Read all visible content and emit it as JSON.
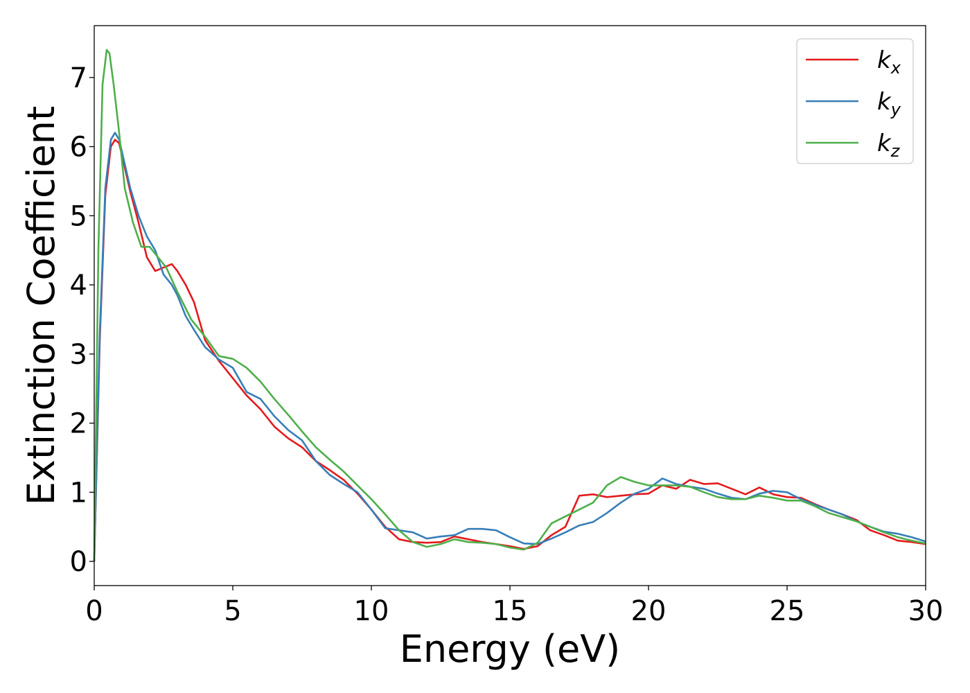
{
  "chart_data": {
    "type": "line",
    "title": "",
    "xlabel": "Energy (eV)",
    "ylabel": "Extinction Coefficient",
    "xlim": [
      0,
      30
    ],
    "ylim": [
      -0.35,
      7.75
    ],
    "xticks": [
      0,
      5,
      10,
      15,
      20,
      25,
      30
    ],
    "yticks": [
      0,
      1,
      2,
      3,
      4,
      5,
      6,
      7
    ],
    "grid": false,
    "legend_position": "top-right",
    "series": [
      {
        "name": "k_x",
        "label_main": "k",
        "label_sub": "x",
        "color": "#e41a1c",
        "points": [
          [
            0,
            0
          ],
          [
            0.2,
            3.2
          ],
          [
            0.4,
            5.3
          ],
          [
            0.6,
            6.0
          ],
          [
            0.75,
            6.1
          ],
          [
            0.9,
            6.05
          ],
          [
            1.1,
            5.7
          ],
          [
            1.3,
            5.35
          ],
          [
            1.6,
            4.9
          ],
          [
            1.9,
            4.4
          ],
          [
            2.2,
            4.2
          ],
          [
            2.5,
            4.25
          ],
          [
            2.8,
            4.3
          ],
          [
            3.0,
            4.2
          ],
          [
            3.3,
            4.0
          ],
          [
            3.6,
            3.75
          ],
          [
            4.0,
            3.2
          ],
          [
            4.5,
            2.9
          ],
          [
            5.0,
            2.65
          ],
          [
            5.5,
            2.4
          ],
          [
            6.0,
            2.2
          ],
          [
            6.5,
            1.95
          ],
          [
            7.0,
            1.78
          ],
          [
            7.5,
            1.65
          ],
          [
            8.0,
            1.45
          ],
          [
            8.5,
            1.32
          ],
          [
            9.0,
            1.18
          ],
          [
            9.5,
            0.98
          ],
          [
            10.0,
            0.75
          ],
          [
            10.5,
            0.5
          ],
          [
            11.0,
            0.32
          ],
          [
            11.5,
            0.28
          ],
          [
            12.0,
            0.27
          ],
          [
            12.5,
            0.28
          ],
          [
            13.0,
            0.36
          ],
          [
            13.5,
            0.32
          ],
          [
            14.0,
            0.28
          ],
          [
            14.5,
            0.25
          ],
          [
            15.0,
            0.22
          ],
          [
            15.5,
            0.18
          ],
          [
            16.0,
            0.22
          ],
          [
            16.5,
            0.38
          ],
          [
            17.0,
            0.5
          ],
          [
            17.5,
            0.95
          ],
          [
            18.0,
            0.97
          ],
          [
            18.5,
            0.93
          ],
          [
            19.0,
            0.95
          ],
          [
            19.5,
            0.97
          ],
          [
            20.0,
            0.98
          ],
          [
            20.5,
            1.1
          ],
          [
            21.0,
            1.05
          ],
          [
            21.5,
            1.18
          ],
          [
            22.0,
            1.12
          ],
          [
            22.5,
            1.13
          ],
          [
            23.0,
            1.05
          ],
          [
            23.5,
            0.97
          ],
          [
            24.0,
            1.07
          ],
          [
            24.5,
            0.97
          ],
          [
            25.0,
            0.93
          ],
          [
            25.5,
            0.92
          ],
          [
            26.0,
            0.83
          ],
          [
            26.5,
            0.75
          ],
          [
            27.0,
            0.68
          ],
          [
            27.5,
            0.6
          ],
          [
            28.0,
            0.45
          ],
          [
            28.5,
            0.38
          ],
          [
            29.0,
            0.3
          ],
          [
            29.5,
            0.28
          ],
          [
            30.0,
            0.25
          ]
        ]
      },
      {
        "name": "k_y",
        "label_main": "k",
        "label_sub": "y",
        "color": "#377eb8",
        "points": [
          [
            0,
            0
          ],
          [
            0.2,
            3.3
          ],
          [
            0.4,
            5.4
          ],
          [
            0.6,
            6.1
          ],
          [
            0.75,
            6.2
          ],
          [
            0.9,
            6.1
          ],
          [
            1.1,
            5.75
          ],
          [
            1.3,
            5.4
          ],
          [
            1.6,
            5.0
          ],
          [
            1.9,
            4.7
          ],
          [
            2.2,
            4.5
          ],
          [
            2.5,
            4.15
          ],
          [
            2.8,
            4.0
          ],
          [
            3.0,
            3.85
          ],
          [
            3.3,
            3.55
          ],
          [
            3.6,
            3.35
          ],
          [
            4.0,
            3.1
          ],
          [
            4.5,
            2.92
          ],
          [
            5.0,
            2.8
          ],
          [
            5.5,
            2.45
          ],
          [
            6.0,
            2.35
          ],
          [
            6.5,
            2.1
          ],
          [
            7.0,
            1.9
          ],
          [
            7.5,
            1.75
          ],
          [
            8.0,
            1.45
          ],
          [
            8.5,
            1.25
          ],
          [
            9.0,
            1.12
          ],
          [
            9.5,
            1.0
          ],
          [
            10.0,
            0.75
          ],
          [
            10.5,
            0.48
          ],
          [
            11.0,
            0.45
          ],
          [
            11.5,
            0.42
          ],
          [
            12.0,
            0.33
          ],
          [
            12.5,
            0.36
          ],
          [
            13.0,
            0.38
          ],
          [
            13.5,
            0.47
          ],
          [
            14.0,
            0.47
          ],
          [
            14.5,
            0.45
          ],
          [
            15.0,
            0.35
          ],
          [
            15.5,
            0.26
          ],
          [
            16.0,
            0.25
          ],
          [
            16.5,
            0.33
          ],
          [
            17.0,
            0.42
          ],
          [
            17.5,
            0.52
          ],
          [
            18.0,
            0.57
          ],
          [
            18.5,
            0.7
          ],
          [
            19.0,
            0.85
          ],
          [
            19.5,
            0.98
          ],
          [
            20.0,
            1.05
          ],
          [
            20.5,
            1.2
          ],
          [
            21.0,
            1.12
          ],
          [
            21.5,
            1.08
          ],
          [
            22.0,
            1.05
          ],
          [
            22.5,
            0.98
          ],
          [
            23.0,
            0.92
          ],
          [
            23.5,
            0.9
          ],
          [
            24.0,
            0.98
          ],
          [
            24.5,
            1.02
          ],
          [
            25.0,
            1.0
          ],
          [
            25.5,
            0.9
          ],
          [
            26.0,
            0.82
          ],
          [
            26.5,
            0.75
          ],
          [
            27.0,
            0.68
          ],
          [
            27.5,
            0.58
          ],
          [
            28.0,
            0.5
          ],
          [
            28.5,
            0.43
          ],
          [
            29.0,
            0.4
          ],
          [
            29.5,
            0.35
          ],
          [
            30.0,
            0.29
          ]
        ]
      },
      {
        "name": "k_z",
        "label_main": "k",
        "label_sub": "z",
        "color": "#4daf4a",
        "points": [
          [
            0,
            0
          ],
          [
            0.15,
            4.5
          ],
          [
            0.3,
            6.9
          ],
          [
            0.45,
            7.4
          ],
          [
            0.55,
            7.35
          ],
          [
            0.7,
            6.9
          ],
          [
            0.9,
            6.2
          ],
          [
            1.1,
            5.4
          ],
          [
            1.4,
            4.9
          ],
          [
            1.7,
            4.55
          ],
          [
            2.0,
            4.55
          ],
          [
            2.3,
            4.4
          ],
          [
            2.6,
            4.25
          ],
          [
            3.0,
            3.9
          ],
          [
            3.5,
            3.5
          ],
          [
            4.0,
            3.25
          ],
          [
            4.5,
            2.97
          ],
          [
            5.0,
            2.93
          ],
          [
            5.5,
            2.8
          ],
          [
            6.0,
            2.6
          ],
          [
            6.5,
            2.35
          ],
          [
            7.0,
            2.12
          ],
          [
            7.5,
            1.88
          ],
          [
            8.0,
            1.65
          ],
          [
            8.5,
            1.47
          ],
          [
            9.0,
            1.3
          ],
          [
            9.5,
            1.1
          ],
          [
            10.0,
            0.9
          ],
          [
            10.5,
            0.68
          ],
          [
            11.0,
            0.45
          ],
          [
            11.5,
            0.28
          ],
          [
            12.0,
            0.21
          ],
          [
            12.5,
            0.25
          ],
          [
            13.0,
            0.32
          ],
          [
            13.5,
            0.28
          ],
          [
            14.0,
            0.27
          ],
          [
            14.5,
            0.25
          ],
          [
            15.0,
            0.2
          ],
          [
            15.5,
            0.17
          ],
          [
            16.0,
            0.27
          ],
          [
            16.5,
            0.55
          ],
          [
            17.0,
            0.65
          ],
          [
            17.5,
            0.75
          ],
          [
            18.0,
            0.85
          ],
          [
            18.5,
            1.1
          ],
          [
            19.0,
            1.22
          ],
          [
            19.5,
            1.15
          ],
          [
            20.0,
            1.1
          ],
          [
            20.5,
            1.1
          ],
          [
            21.0,
            1.1
          ],
          [
            21.5,
            1.08
          ],
          [
            22.0,
            1.0
          ],
          [
            22.5,
            0.93
          ],
          [
            23.0,
            0.9
          ],
          [
            23.5,
            0.9
          ],
          [
            24.0,
            0.95
          ],
          [
            24.5,
            0.92
          ],
          [
            25.0,
            0.88
          ],
          [
            25.5,
            0.88
          ],
          [
            26.0,
            0.8
          ],
          [
            26.5,
            0.7
          ],
          [
            27.0,
            0.64
          ],
          [
            27.5,
            0.58
          ],
          [
            28.0,
            0.5
          ],
          [
            28.5,
            0.42
          ],
          [
            29.0,
            0.35
          ],
          [
            29.5,
            0.3
          ],
          [
            30.0,
            0.26
          ]
        ]
      }
    ]
  }
}
